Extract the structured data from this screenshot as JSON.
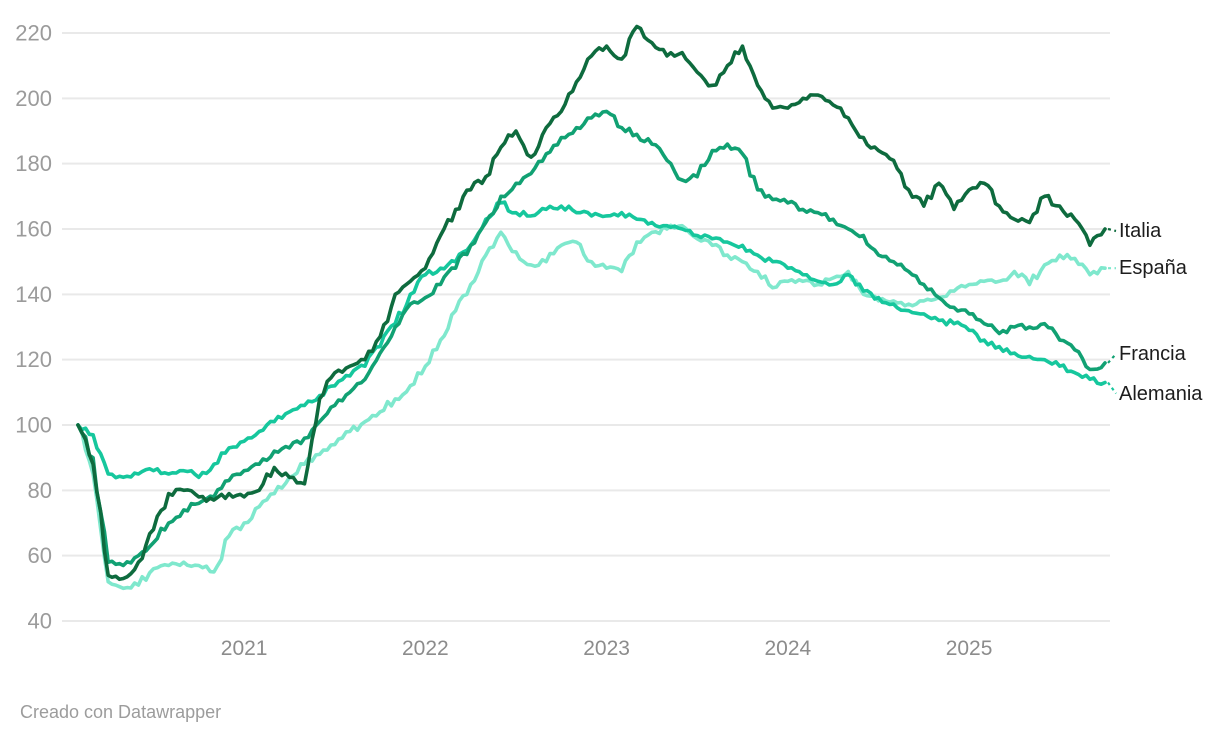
{
  "chart_data": {
    "type": "line",
    "title": "",
    "x_unit": "month",
    "x": [
      "2020-02",
      "2020-03",
      "2020-04",
      "2020-05",
      "2020-06",
      "2020-07",
      "2020-08",
      "2020-09",
      "2020-10",
      "2020-11",
      "2020-12",
      "2021-01",
      "2021-02",
      "2021-03",
      "2021-04",
      "2021-05",
      "2021-06",
      "2021-07",
      "2021-08",
      "2021-09",
      "2021-10",
      "2021-11",
      "2021-12",
      "2022-01",
      "2022-02",
      "2022-03",
      "2022-04",
      "2022-05",
      "2022-06",
      "2022-07",
      "2022-08",
      "2022-09",
      "2022-10",
      "2022-11",
      "2022-12",
      "2023-01",
      "2023-02",
      "2023-03",
      "2023-04",
      "2023-05",
      "2023-06",
      "2023-07",
      "2023-08",
      "2023-09",
      "2023-10",
      "2023-11",
      "2023-12",
      "2024-01",
      "2024-02",
      "2024-03",
      "2024-04",
      "2024-05",
      "2024-06",
      "2024-07",
      "2024-08",
      "2024-09",
      "2024-10",
      "2024-11",
      "2024-12",
      "2025-01",
      "2025-02",
      "2025-03",
      "2025-04",
      "2025-05",
      "2025-06",
      "2025-07",
      "2025-08",
      "2025-09",
      "2025-10"
    ],
    "x_axis": {
      "year_ticks": [
        {
          "label": "2021",
          "month_index": 11
        },
        {
          "label": "2022",
          "month_index": 23
        },
        {
          "label": "2023",
          "month_index": 35
        },
        {
          "label": "2024",
          "month_index": 47
        },
        {
          "label": "2025",
          "month_index": 59
        }
      ]
    },
    "y_axis": {
      "ticks": [
        40,
        60,
        80,
        100,
        120,
        140,
        160,
        180,
        200,
        220
      ],
      "min": 40,
      "max": 224,
      "grid": true
    },
    "legend_position": "right-edge-labels",
    "series": [
      {
        "name": "España",
        "color": "#7fe8cd",
        "values": [
          100,
          85,
          52,
          50,
          51,
          56,
          57,
          58,
          57,
          55,
          66,
          70,
          75,
          79,
          84,
          88,
          91,
          94,
          98,
          101,
          104,
          108,
          112,
          118,
          126,
          135,
          143,
          152,
          159,
          153,
          149,
          150,
          155,
          156,
          150,
          148,
          147,
          156,
          159,
          160,
          161,
          157,
          155,
          152,
          150,
          147,
          142,
          144,
          144,
          143,
          145,
          147,
          140,
          138,
          138,
          137,
          138,
          139,
          141,
          143,
          144,
          144,
          147,
          143,
          149,
          152,
          151,
          146,
          148
        ]
      },
      {
        "name": "Alemania",
        "color": "#16c79d",
        "values": [
          100,
          97,
          85,
          84,
          85,
          86,
          85,
          86,
          84,
          88,
          93,
          95,
          98,
          101,
          104,
          106,
          109,
          112,
          115,
          118,
          124,
          131,
          140,
          146,
          148,
          150,
          155,
          163,
          168,
          165,
          164,
          166,
          167,
          165,
          164,
          164,
          165,
          163,
          162,
          161,
          160,
          158,
          157,
          156,
          155,
          152,
          150,
          148,
          146,
          144,
          143,
          146,
          141,
          139,
          137,
          135,
          134,
          132,
          131,
          129,
          126,
          124,
          122,
          121,
          120,
          118,
          116,
          114,
          113
        ]
      },
      {
        "name": "Francia",
        "color": "#11a173",
        "values": [
          100,
          90,
          58,
          57,
          60,
          64,
          70,
          74,
          76,
          78,
          83,
          86,
          88,
          92,
          93,
          96,
          101,
          106,
          110,
          114,
          122,
          130,
          137,
          139,
          143,
          148,
          155,
          162,
          170,
          174,
          177,
          183,
          188,
          191,
          194,
          196,
          191,
          189,
          186,
          181,
          175,
          176,
          184,
          186,
          183,
          172,
          169,
          168,
          166,
          165,
          163,
          160,
          158,
          152,
          150,
          147,
          143,
          139,
          136,
          134,
          131,
          128,
          130,
          130,
          131,
          126,
          123,
          117,
          119
        ]
      },
      {
        "name": "Italia",
        "color": "#0e6b3e",
        "values": [
          100,
          88,
          54,
          53,
          58,
          68,
          79,
          80,
          78,
          77,
          79,
          78,
          80,
          87,
          84,
          82,
          108,
          116,
          118,
          120,
          127,
          140,
          144,
          148,
          158,
          166,
          172,
          176,
          185,
          190,
          182,
          191,
          196,
          205,
          213,
          216,
          212,
          222,
          217,
          213,
          214,
          208,
          204,
          210,
          216,
          204,
          197,
          197,
          200,
          201,
          198,
          194,
          188,
          184,
          181,
          172,
          167,
          174,
          166,
          172,
          174,
          167,
          163,
          162,
          170,
          167,
          163,
          155,
          160
        ]
      }
    ]
  },
  "footer": {
    "attribution": "Creado con Datawrapper"
  }
}
